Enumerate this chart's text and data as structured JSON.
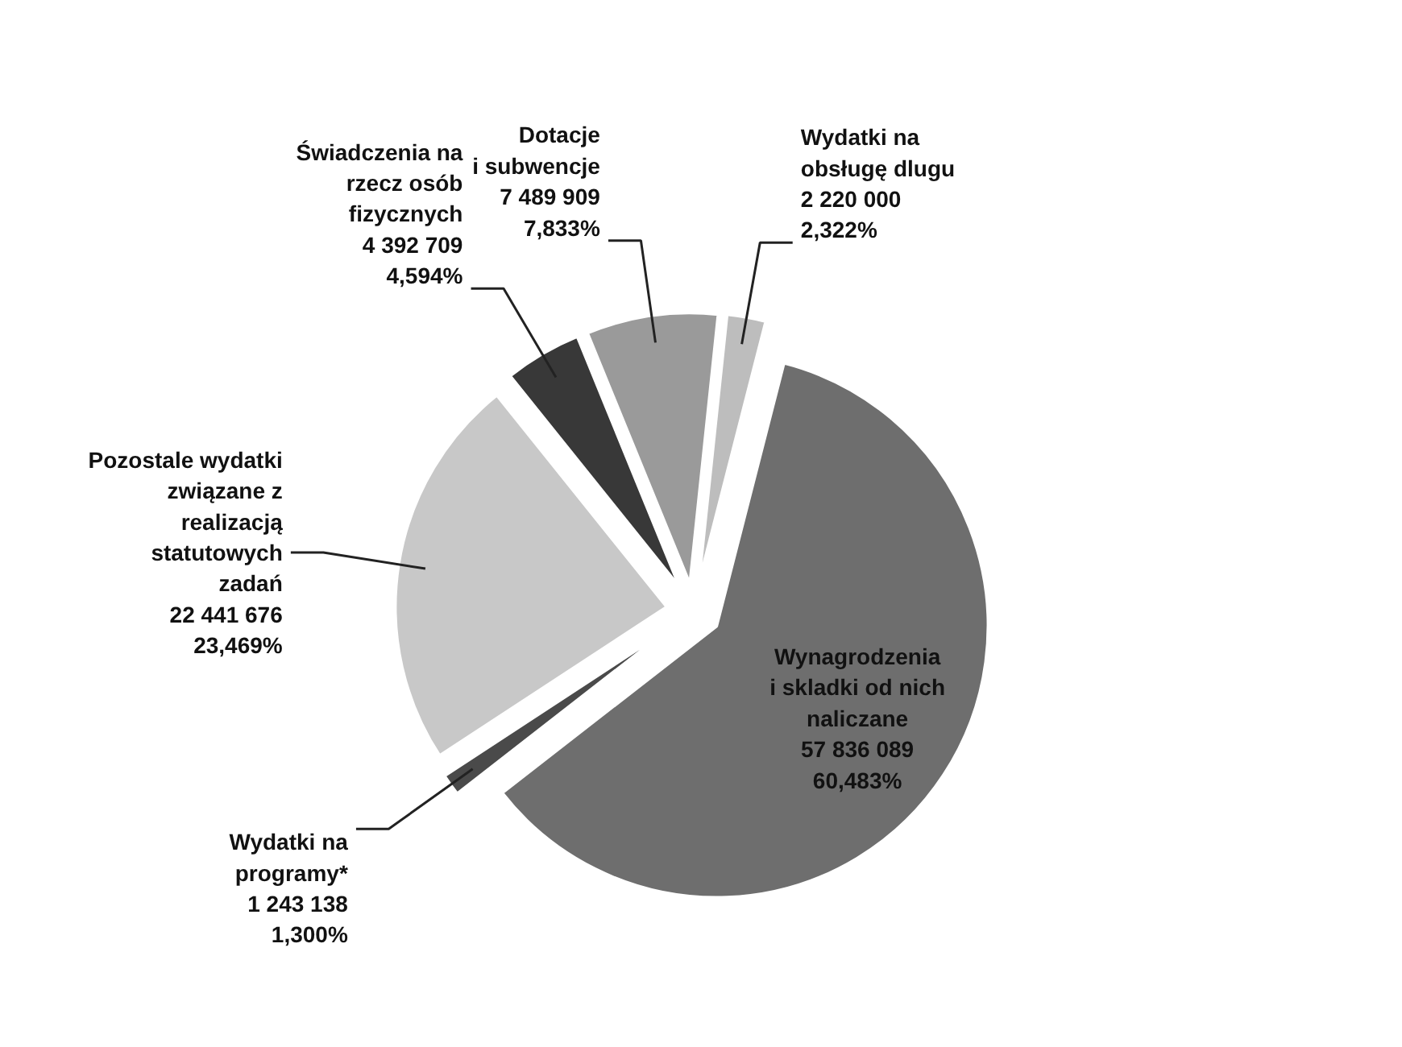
{
  "chart_data": {
    "type": "pie",
    "categories": [
      "Wydatki na\nobsługę dlugu",
      "Wynagrodzenia\ni skladki od nich\nnaliczane",
      "Wydatki na\nprogramy*",
      "Pozostale wydatki\nzwiązane z\nrealizacją\nstatutowych\nzadań",
      "Świadczenia na\nrzecz osób\nfizycznych",
      "Dotacje\ni subwencje"
    ],
    "values": [
      2220000,
      57836089,
      1243138,
      22441676,
      4392709,
      7489909
    ],
    "value_labels": [
      "2 220 000\n2,322%",
      "57 836 089\n60,483%",
      "1 243 138\n1,300%",
      "22 441 676\n23,469%",
      "4 392 709\n4,594%",
      "7 489 909\n7,833%"
    ],
    "colors": [
      "#bdbdbd",
      "#6e6e6e",
      "#4a4a4a",
      "#c8c8c8",
      "#383838",
      "#9a9a9a"
    ],
    "legend": false
  }
}
